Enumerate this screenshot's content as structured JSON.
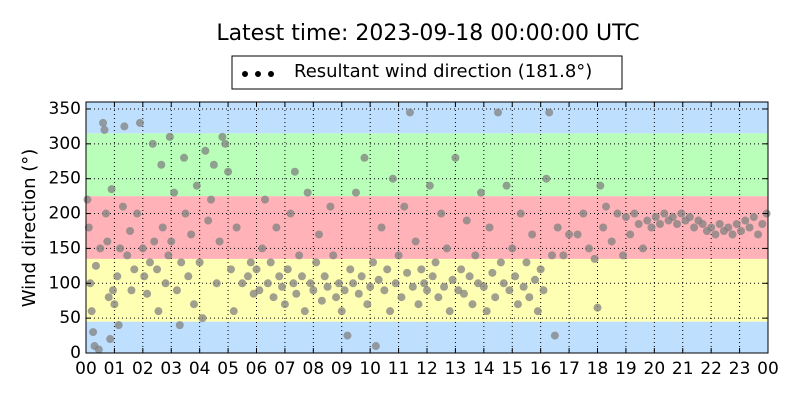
{
  "chart_data": {
    "type": "scatter",
    "title": "Latest time: 2023-09-18 00:00:00 UTC",
    "y_label": "Wind direction (°)",
    "legend": "upper center",
    "grid": true,
    "xlim": [
      0,
      24
    ],
    "xticks": [
      {
        "value": 0,
        "label": "00"
      },
      {
        "value": 1,
        "label": "01"
      },
      {
        "value": 2,
        "label": "02"
      },
      {
        "value": 3,
        "label": "03"
      },
      {
        "value": 4,
        "label": "04"
      },
      {
        "value": 5,
        "label": "05"
      },
      {
        "value": 6,
        "label": "06"
      },
      {
        "value": 7,
        "label": "07"
      },
      {
        "value": 8,
        "label": "08"
      },
      {
        "value": 9,
        "label": "09"
      },
      {
        "value": 10,
        "label": "10"
      },
      {
        "value": 11,
        "label": "11"
      },
      {
        "value": 12,
        "label": "12"
      },
      {
        "value": 13,
        "label": "13"
      },
      {
        "value": 14,
        "label": "14"
      },
      {
        "value": 15,
        "label": "15"
      },
      {
        "value": 16,
        "label": "16"
      },
      {
        "value": 17,
        "label": "17"
      },
      {
        "value": 18,
        "label": "18"
      },
      {
        "value": 19,
        "label": "19"
      },
      {
        "value": 20,
        "label": "20"
      },
      {
        "value": 21,
        "label": "21"
      },
      {
        "value": 22,
        "label": "22"
      },
      {
        "value": 23,
        "label": "23"
      },
      {
        "value": 24,
        "label": "00"
      }
    ],
    "ylim": [
      0,
      360
    ],
    "yticks": [
      0,
      50,
      100,
      150,
      200,
      250,
      300,
      350
    ],
    "bands": [
      {
        "from": 0,
        "to": 45,
        "color": "#bfdfff"
      },
      {
        "from": 45,
        "to": 135,
        "color": "#ffffb3"
      },
      {
        "from": 135,
        "to": 225,
        "color": "#ffb3b8"
      },
      {
        "from": 225,
        "to": 315,
        "color": "#b9ffb9"
      },
      {
        "from": 315,
        "to": 360,
        "color": "#bfdfff"
      }
    ],
    "x": [
      0.05,
      0.1,
      0.15,
      0.2,
      0.25,
      0.3,
      0.35,
      0.45,
      0.5,
      0.6,
      0.65,
      0.7,
      0.75,
      0.8,
      0.85,
      0.9,
      0.95,
      1.0,
      1.1,
      1.15,
      1.2,
      1.3,
      1.35,
      1.45,
      1.55,
      1.6,
      1.7,
      1.8,
      1.9,
      2.0,
      2.05,
      2.15,
      2.25,
      2.35,
      2.4,
      2.5,
      2.55,
      2.65,
      2.7,
      2.8,
      2.9,
      2.95,
      3.0,
      3.1,
      3.2,
      3.3,
      3.35,
      3.45,
      3.5,
      3.6,
      3.7,
      3.8,
      3.9,
      4.0,
      4.1,
      4.2,
      4.3,
      4.4,
      4.5,
      4.6,
      4.7,
      4.8,
      4.9,
      5.0,
      5.1,
      5.2,
      5.3,
      5.5,
      5.7,
      5.8,
      5.9,
      6.0,
      6.1,
      6.2,
      6.3,
      6.4,
      6.5,
      6.6,
      6.7,
      6.8,
      6.9,
      7.0,
      7.1,
      7.2,
      7.3,
      7.35,
      7.4,
      7.5,
      7.6,
      7.7,
      7.8,
      7.9,
      8.0,
      8.1,
      8.2,
      8.3,
      8.4,
      8.5,
      8.6,
      8.7,
      8.8,
      8.9,
      9.0,
      9.1,
      9.2,
      9.3,
      9.4,
      9.5,
      9.6,
      9.7,
      9.8,
      9.9,
      10.0,
      10.1,
      10.2,
      10.3,
      10.4,
      10.5,
      10.6,
      10.7,
      10.8,
      10.9,
      11.0,
      11.1,
      11.2,
      11.3,
      11.4,
      11.5,
      11.6,
      11.7,
      11.8,
      11.9,
      12.0,
      12.1,
      12.2,
      12.3,
      12.4,
      12.5,
      12.6,
      12.7,
      12.8,
      12.9,
      13.0,
      13.1,
      13.2,
      13.3,
      13.4,
      13.5,
      13.6,
      13.7,
      13.8,
      13.9,
      14.0,
      14.1,
      14.2,
      14.3,
      14.4,
      14.5,
      14.6,
      14.7,
      14.8,
      14.9,
      15.0,
      15.1,
      15.2,
      15.3,
      15.4,
      15.5,
      15.6,
      15.7,
      15.8,
      15.9,
      16.0,
      16.1,
      16.2,
      16.3,
      16.4,
      16.5,
      16.6,
      16.8,
      17.0,
      17.3,
      17.5,
      17.7,
      17.9,
      18.0,
      18.1,
      18.2,
      18.3,
      18.5,
      18.7,
      18.9,
      19.0,
      19.15,
      19.3,
      19.45,
      19.6,
      19.75,
      19.9,
      20.05,
      20.2,
      20.35,
      20.5,
      20.65,
      20.8,
      20.95,
      21.1,
      21.25,
      21.4,
      21.55,
      21.7,
      21.85,
      22.0,
      22.15,
      22.3,
      22.45,
      22.6,
      22.75,
      22.9,
      23.05,
      23.2,
      23.35,
      23.5,
      23.65,
      23.8,
      23.95
    ],
    "series": [
      {
        "name": "Resultant wind direction (181.8°)",
        "color": "#808080",
        "values": [
          220,
          180,
          100,
          60,
          30,
          10,
          125,
          5,
          150,
          330,
          320,
          200,
          160,
          80,
          20,
          235,
          90,
          70,
          110,
          40,
          150,
          210,
          325,
          140,
          175,
          90,
          120,
          200,
          330,
          150,
          110,
          85,
          130,
          300,
          160,
          120,
          60,
          270,
          180,
          100,
          140,
          310,
          160,
          230,
          90,
          40,
          130,
          280,
          200,
          110,
          170,
          70,
          240,
          130,
          50,
          290,
          190,
          220,
          270,
          100,
          160,
          310,
          300,
          260,
          120,
          60,
          180,
          100,
          110,
          130,
          85,
          120,
          90,
          150,
          220,
          100,
          130,
          80,
          180,
          110,
          95,
          70,
          120,
          200,
          100,
          260,
          85,
          140,
          110,
          60,
          230,
          100,
          90,
          130,
          170,
          75,
          110,
          95,
          210,
          140,
          80,
          100,
          60,
          90,
          25,
          120,
          100,
          230,
          85,
          110,
          280,
          70,
          95,
          130,
          10,
          105,
          180,
          90,
          120,
          60,
          250,
          100,
          140,
          80,
          210,
          115,
          345,
          95,
          160,
          70,
          120,
          100,
          90,
          240,
          110,
          130,
          80,
          200,
          95,
          150,
          60,
          105,
          280,
          90,
          120,
          85,
          190,
          110,
          70,
          140,
          100,
          230,
          95,
          60,
          180,
          115,
          80,
          345,
          130,
          100,
          240,
          90,
          150,
          110,
          70,
          200,
          95,
          130,
          80,
          170,
          105,
          60,
          120,
          90,
          250,
          345,
          140,
          25,
          180,
          140,
          170,
          170,
          200,
          150,
          135,
          65,
          240,
          180,
          210,
          160,
          200,
          140,
          195,
          170,
          200,
          185,
          150,
          190,
          180,
          195,
          185,
          200,
          190,
          195,
          185,
          200,
          190,
          195,
          180,
          190,
          185,
          175,
          180,
          170,
          185,
          175,
          180,
          170,
          185,
          175,
          190,
          180,
          195,
          170,
          185,
          200
        ]
      }
    ]
  }
}
